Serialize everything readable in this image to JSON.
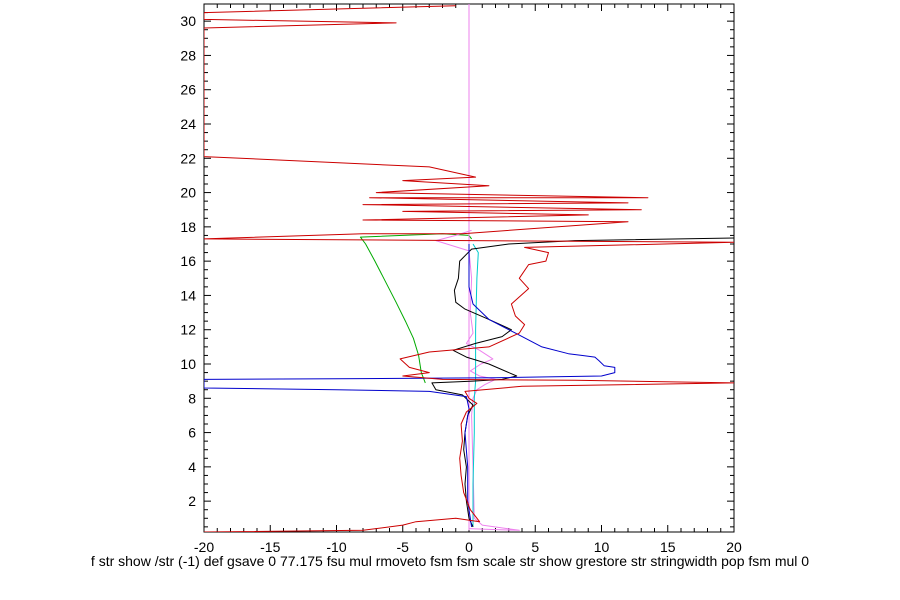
{
  "chart_data": {
    "type": "line",
    "title": "",
    "xlabel": "",
    "ylabel": "",
    "xlim": [
      -20,
      20
    ],
    "ylim": [
      0.2,
      31
    ],
    "x_ticks": [
      -20,
      -15,
      -10,
      -5,
      0,
      5,
      10,
      15,
      20
    ],
    "y_ticks": [
      2,
      4,
      6,
      8,
      10,
      12,
      14,
      16,
      18,
      20,
      22,
      24,
      26,
      28,
      30
    ],
    "grid": false,
    "series": [
      {
        "color": "#00aa00",
        "points": [
          [
            -3.3,
            8.9
          ],
          [
            -3.6,
            9.5
          ],
          [
            -3.8,
            10.5
          ],
          [
            -4.2,
            11.5
          ],
          [
            -4.8,
            12.5
          ],
          [
            -5.5,
            13.6
          ],
          [
            -6.3,
            14.8
          ],
          [
            -7.1,
            16.0
          ],
          [
            -7.8,
            17.0
          ],
          [
            -8.2,
            17.4
          ],
          [
            -2.0,
            17.6
          ],
          [
            0.0,
            17.5
          ],
          [
            0.2,
            17.3
          ]
        ]
      },
      {
        "color": "#ee82ee",
        "points": [
          [
            0.0,
            0.3
          ],
          [
            0.0,
            31.0
          ]
        ]
      },
      {
        "color": "#ee82ee",
        "points": [
          [
            0.0,
            0.4
          ],
          [
            1.5,
            0.35
          ],
          [
            3.8,
            0.3
          ],
          [
            1.0,
            0.6
          ],
          [
            0.4,
            1.0
          ],
          [
            0.3,
            4.0
          ],
          [
            0.2,
            7.0
          ],
          [
            0.3,
            8.0
          ],
          [
            0.6,
            8.5
          ],
          [
            1.2,
            8.8
          ],
          [
            2.0,
            9.1
          ],
          [
            0.8,
            9.3
          ],
          [
            0.1,
            9.6
          ],
          [
            0.9,
            10.0
          ],
          [
            1.8,
            10.3
          ],
          [
            0.8,
            10.8
          ],
          [
            -0.2,
            11.2
          ],
          [
            0.3,
            11.8
          ],
          [
            0.1,
            13.0
          ],
          [
            0.2,
            15.0
          ],
          [
            0.0,
            16.6
          ],
          [
            -2.5,
            17.2
          ],
          [
            -1.0,
            17.5
          ],
          [
            0.2,
            17.8
          ]
        ]
      },
      {
        "color": "#00cccc",
        "points": [
          [
            0.3,
            0.5
          ],
          [
            0.3,
            3.0
          ],
          [
            0.4,
            6.0
          ],
          [
            0.4,
            8.0
          ],
          [
            0.5,
            9.0
          ],
          [
            0.5,
            12.0
          ],
          [
            0.6,
            15.0
          ],
          [
            0.7,
            16.5
          ],
          [
            0.3,
            17.0
          ]
        ]
      },
      {
        "color": "#000000",
        "points": [
          [
            0.3,
            0.5
          ],
          [
            0.0,
            1.0
          ],
          [
            -0.2,
            2.0
          ],
          [
            -0.3,
            3.0
          ],
          [
            -0.2,
            4.0
          ],
          [
            -0.4,
            5.0
          ],
          [
            -0.3,
            6.0
          ],
          [
            -0.1,
            7.0
          ],
          [
            0.3,
            7.6
          ],
          [
            -0.5,
            8.2
          ],
          [
            -2.5,
            8.5
          ],
          [
            -2.8,
            8.9
          ],
          [
            0.3,
            9.0
          ],
          [
            2.5,
            9.1
          ],
          [
            3.6,
            9.3
          ],
          [
            1.5,
            10.0
          ],
          [
            -0.2,
            10.4
          ],
          [
            -1.2,
            10.8
          ],
          [
            0.5,
            11.2
          ],
          [
            2.5,
            11.6
          ],
          [
            3.2,
            12.0
          ],
          [
            1.5,
            12.6
          ],
          [
            -0.3,
            13.2
          ],
          [
            -1.0,
            13.6
          ],
          [
            -1.1,
            14.3
          ],
          [
            -0.8,
            15.0
          ],
          [
            -0.7,
            16.0
          ],
          [
            0.2,
            16.7
          ],
          [
            3.0,
            17.0
          ],
          [
            8.0,
            17.2
          ],
          [
            20.0,
            17.35
          ]
        ]
      },
      {
        "color": "#0000cc",
        "points": [
          [
            0.2,
            0.5
          ],
          [
            -0.1,
            2.0
          ],
          [
            -0.1,
            4.0
          ],
          [
            -0.3,
            6.0
          ],
          [
            0.0,
            7.4
          ],
          [
            -0.2,
            8.1
          ],
          [
            -3.0,
            8.4
          ],
          [
            -10.0,
            8.5
          ],
          [
            -20.0,
            8.6
          ],
          [
            -20.0,
            9.1
          ],
          [
            -8.0,
            9.15
          ],
          [
            2.0,
            9.2
          ],
          [
            10.0,
            9.3
          ],
          [
            11.0,
            9.5
          ],
          [
            11.0,
            9.8
          ],
          [
            10.2,
            9.9
          ],
          [
            9.8,
            10.2
          ],
          [
            9.5,
            10.4
          ],
          [
            8.5,
            10.5
          ],
          [
            7.5,
            10.6
          ],
          [
            5.5,
            11.0
          ],
          [
            3.5,
            11.8
          ],
          [
            1.5,
            12.6
          ],
          [
            0.3,
            13.5
          ],
          [
            0.0,
            14.5
          ],
          [
            0.0,
            16.0
          ],
          [
            0.0,
            17.0
          ]
        ]
      },
      {
        "color": "#cc0000",
        "points": [
          [
            -20.0,
            0.2
          ],
          [
            -8.0,
            0.3
          ],
          [
            -5.0,
            0.6
          ],
          [
            -4.0,
            0.8
          ],
          [
            -1.0,
            1.0
          ],
          [
            0.8,
            0.8
          ],
          [
            0.1,
            1.5
          ],
          [
            -0.4,
            2.5
          ],
          [
            -0.6,
            3.5
          ],
          [
            -0.7,
            4.5
          ],
          [
            -0.5,
            5.5
          ],
          [
            -0.6,
            6.5
          ],
          [
            -0.2,
            7.2
          ],
          [
            0.6,
            7.7
          ],
          [
            0.0,
            8.0
          ],
          [
            -0.3,
            8.4
          ],
          [
            4.0,
            8.7
          ],
          [
            20.0,
            8.9
          ],
          [
            8.0,
            9.05
          ],
          [
            -2.0,
            9.1
          ],
          [
            -5.0,
            9.3
          ],
          [
            -3.0,
            9.5
          ],
          [
            -4.5,
            9.8
          ],
          [
            -5.2,
            10.3
          ],
          [
            -3.0,
            10.7
          ],
          [
            1.5,
            11.0
          ],
          [
            3.8,
            11.8
          ],
          [
            4.2,
            12.3
          ],
          [
            3.5,
            12.8
          ],
          [
            3.2,
            13.5
          ],
          [
            4.5,
            14.4
          ],
          [
            3.8,
            15.0
          ],
          [
            4.5,
            15.8
          ],
          [
            5.8,
            16.0
          ],
          [
            6.0,
            16.5
          ],
          [
            4.2,
            16.8
          ],
          [
            20.0,
            17.1
          ],
          [
            -20.0,
            17.3
          ],
          [
            -8.0,
            17.6
          ],
          [
            -0.5,
            17.6
          ],
          [
            12.0,
            18.3
          ],
          [
            -8.0,
            18.4
          ],
          [
            9.0,
            18.7
          ],
          [
            -5.0,
            18.9
          ],
          [
            13.0,
            19.0
          ],
          [
            -8.0,
            19.3
          ],
          [
            12.0,
            19.4
          ],
          [
            -7.5,
            19.7
          ],
          [
            13.5,
            19.7
          ],
          [
            -7.0,
            20.0
          ],
          [
            1.5,
            20.4
          ],
          [
            -5.0,
            20.7
          ],
          [
            0.5,
            20.9
          ],
          [
            -3.0,
            21.5
          ],
          [
            -20.0,
            22.1
          ],
          [
            -20.0,
            22.4
          ],
          [
            -20.0,
            29.6
          ],
          [
            -5.5,
            29.9
          ],
          [
            -20.0,
            30.1
          ],
          [
            -20.0,
            30.5
          ],
          [
            -1.0,
            30.9
          ]
        ]
      }
    ]
  },
  "footer": {
    "text": "f str show /str (-1) def gsave 0 77.175 fsu mul rmoveto fsm fsm scale str show grestore str stringwidth pop fsm mul 0"
  }
}
